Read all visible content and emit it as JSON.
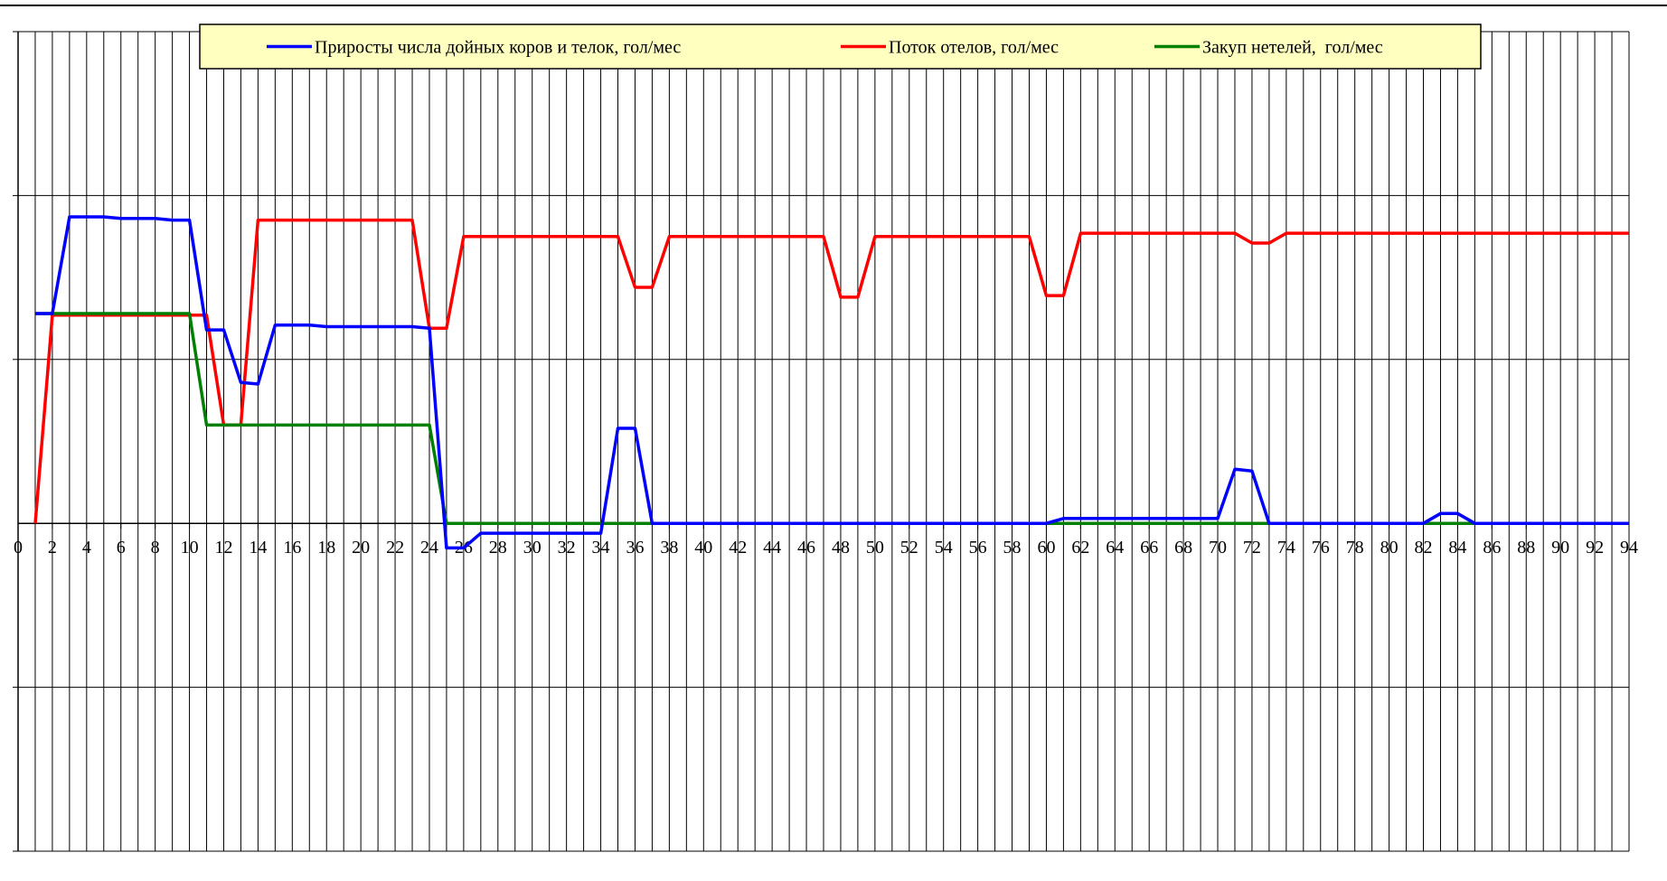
{
  "chart_data": {
    "type": "line",
    "title": "",
    "xlabel": "",
    "ylabel": "",
    "xlim": [
      0,
      94
    ],
    "x_ticks": [
      0,
      2,
      4,
      6,
      8,
      10,
      12,
      14,
      16,
      18,
      20,
      22,
      24,
      26,
      28,
      30,
      32,
      34,
      36,
      38,
      40,
      42,
      44,
      46,
      48,
      50,
      52,
      54,
      56,
      58,
      60,
      62,
      64,
      66,
      68,
      70,
      72,
      74,
      76,
      78,
      80,
      82,
      84,
      86,
      88,
      90,
      92,
      94
    ],
    "ylim": [
      -2,
      3
    ],
    "y_tick_labels": "none",
    "grid": "vertical lines every 1 month, horizontal lines at each y unit",
    "legend_position": "top-center",
    "series": [
      {
        "name": "Приросты числа дойных коров и телок, гол/мес",
        "color": "#0000ff",
        "x": [
          1,
          2,
          3,
          4,
          5,
          6,
          7,
          8,
          9,
          10,
          11,
          12,
          13,
          14,
          15,
          16,
          17,
          18,
          19,
          20,
          21,
          22,
          23,
          24,
          25,
          26,
          27,
          28,
          29,
          30,
          31,
          32,
          33,
          34,
          35,
          36,
          37,
          38,
          59,
          60,
          61,
          62,
          63,
          64,
          65,
          66,
          67,
          68,
          69,
          70,
          71,
          72,
          73,
          74,
          81,
          82,
          83,
          84,
          85,
          94
        ],
        "y": [
          1.28,
          1.28,
          1.87,
          1.87,
          1.87,
          1.86,
          1.86,
          1.86,
          1.85,
          1.85,
          1.18,
          1.18,
          0.86,
          0.85,
          1.21,
          1.21,
          1.21,
          1.2,
          1.2,
          1.2,
          1.2,
          1.2,
          1.2,
          1.19,
          -0.15,
          -0.15,
          -0.06,
          -0.06,
          -0.06,
          -0.06,
          -0.06,
          -0.06,
          -0.06,
          -0.06,
          0.58,
          0.58,
          0,
          0,
          0,
          0,
          0.03,
          0.03,
          0.03,
          0.03,
          0.03,
          0.03,
          0.03,
          0.03,
          0.03,
          0.03,
          0.33,
          0.32,
          0,
          0,
          0,
          0,
          0.06,
          0.06,
          0,
          0
        ]
      },
      {
        "name": "Поток отелов, гол/мес",
        "color": "#ff0000",
        "x": [
          1,
          2,
          3,
          4,
          5,
          6,
          7,
          8,
          9,
          10,
          11,
          12,
          13,
          14,
          15,
          16,
          17,
          18,
          19,
          20,
          21,
          22,
          23,
          24,
          25,
          26,
          27,
          28,
          29,
          30,
          31,
          32,
          33,
          34,
          35,
          36,
          37,
          38,
          39,
          40,
          41,
          42,
          43,
          44,
          45,
          46,
          47,
          48,
          49,
          50,
          51,
          52,
          53,
          54,
          55,
          56,
          57,
          58,
          59,
          60,
          61,
          62,
          63,
          64,
          65,
          66,
          67,
          68,
          69,
          70,
          71,
          72,
          73,
          74,
          75,
          76,
          77,
          78,
          79,
          80,
          81,
          82,
          83,
          84,
          85,
          86,
          87,
          88,
          89,
          90,
          91,
          92,
          93,
          94
        ],
        "y": [
          0,
          1.27,
          1.27,
          1.27,
          1.27,
          1.27,
          1.27,
          1.27,
          1.27,
          1.27,
          1.27,
          0.6,
          0.6,
          1.85,
          1.85,
          1.85,
          1.85,
          1.85,
          1.85,
          1.85,
          1.85,
          1.85,
          1.85,
          1.19,
          1.19,
          1.75,
          1.75,
          1.75,
          1.75,
          1.75,
          1.75,
          1.75,
          1.75,
          1.75,
          1.75,
          1.44,
          1.44,
          1.75,
          1.75,
          1.75,
          1.75,
          1.75,
          1.75,
          1.75,
          1.75,
          1.75,
          1.75,
          1.38,
          1.38,
          1.75,
          1.75,
          1.75,
          1.75,
          1.75,
          1.75,
          1.75,
          1.75,
          1.75,
          1.75,
          1.39,
          1.39,
          1.77,
          1.77,
          1.77,
          1.77,
          1.77,
          1.77,
          1.77,
          1.77,
          1.77,
          1.77,
          1.71,
          1.71,
          1.77,
          1.77,
          1.77,
          1.77,
          1.77,
          1.77,
          1.77,
          1.77,
          1.77,
          1.77,
          1.77,
          1.77,
          1.77,
          1.77,
          1.77,
          1.77,
          1.77,
          1.77,
          1.77,
          1.77,
          1.77
        ]
      },
      {
        "name": "Закуп нетелей,  гол/мес",
        "color": "#008000",
        "x": [
          1,
          10,
          11,
          24,
          25,
          94
        ],
        "y": [
          1.28,
          1.28,
          0.6,
          0.6,
          0,
          0
        ]
      }
    ]
  }
}
